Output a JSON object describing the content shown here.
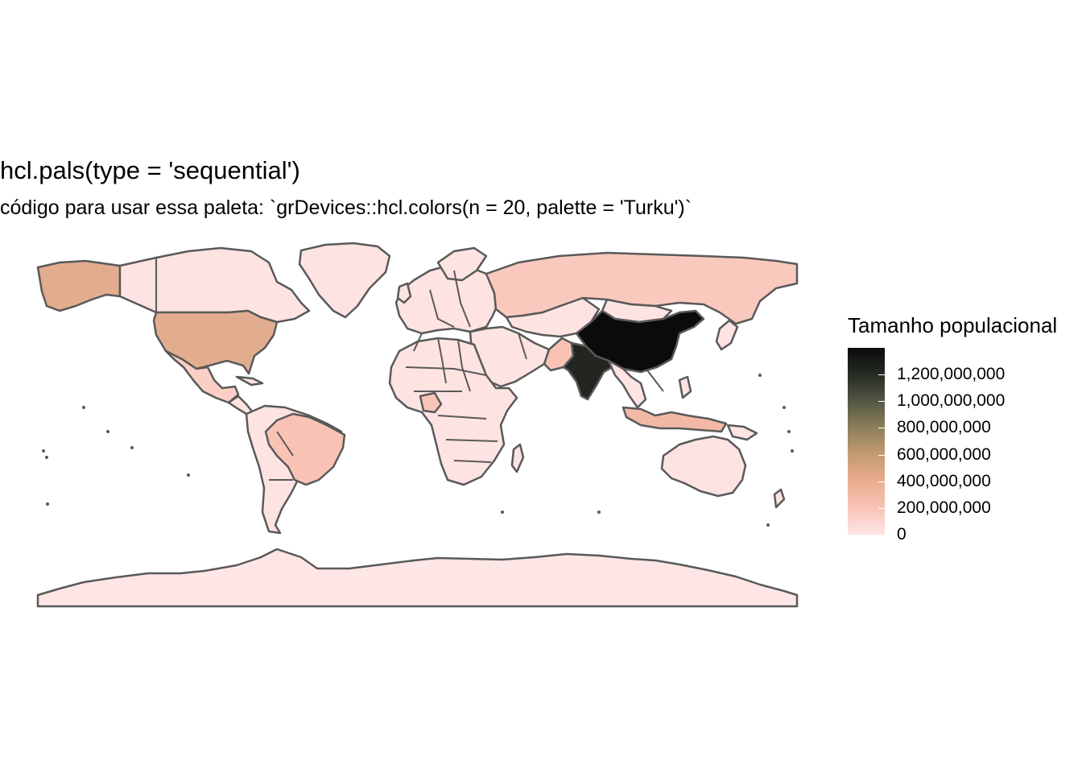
{
  "title": "hcl.pals(type = 'sequential')",
  "subtitle": "código para usar essa paleta: `grDevices::hcl.colors(n = 20, palette = 'Turku')`",
  "map": {
    "projection": "equirectangular",
    "border_color": "#595959",
    "regions": [
      {
        "name": "China",
        "population": 1400000000,
        "color": "#0b0b0a"
      },
      {
        "name": "India",
        "population": 1330000000,
        "color": "#232521"
      },
      {
        "name": "United States",
        "population": 330000000,
        "color": "#e2ad8f"
      },
      {
        "name": "Indonesia",
        "population": 265000000,
        "color": "#f3b9a6"
      },
      {
        "name": "Brazil",
        "population": 210000000,
        "color": "#f8c3b5"
      },
      {
        "name": "Pakistan",
        "population": 200000000,
        "color": "#f8c3b5"
      },
      {
        "name": "Nigeria",
        "population": 190000000,
        "color": "#f9c5b8"
      },
      {
        "name": "Bangladesh",
        "population": 165000000,
        "color": "#f9c8bc"
      },
      {
        "name": "Russia",
        "population": 145000000,
        "color": "#fac9be"
      },
      {
        "name": "Mexico",
        "population": 125000000,
        "color": "#fbcfc6"
      },
      {
        "name": "Alaska (USA)",
        "population": 330000000,
        "color": "#e2ad8f"
      },
      {
        "name": "Other countries",
        "population": 30000000,
        "color": "#fde3e2"
      },
      {
        "name": "Antarctica",
        "population": 0,
        "color": "#ffe6e6"
      }
    ]
  },
  "legend": {
    "title": "Tamanho populacional",
    "labels": [
      "1,200,000,000",
      "1,000,000,000",
      "800,000,000",
      "600,000,000",
      "400,000,000",
      "200,000,000",
      "0"
    ],
    "values": [
      1200000000,
      1000000000,
      800000000,
      600000000,
      400000000,
      200000000,
      0
    ],
    "min": 0,
    "max": 1400000000,
    "gradient": [
      "#ffe6e6",
      "#f8c4b7",
      "#e9ac8e",
      "#c49b70",
      "#8d7f5a",
      "#535744",
      "#262b24",
      "#0a0a0a"
    ]
  },
  "chart_data": {
    "type": "map",
    "title": "hcl.pals(type = 'sequential')",
    "subtitle": "código para usar essa paleta: `grDevices::hcl.colors(n = 20, palette = 'Turku')`",
    "legend_title": "Tamanho populacional",
    "legend_placement": "right",
    "scale": "continuous",
    "palette": "Turku",
    "range": [
      0,
      1400000000
    ]
  }
}
